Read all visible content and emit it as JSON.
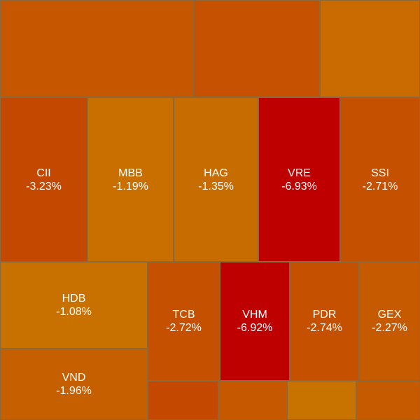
{
  "chart_data": {
    "type": "treemap",
    "tiles": [
      {
        "ticker": "",
        "change": "",
        "change_value": null,
        "color": "#c75600"
      },
      {
        "ticker": "",
        "change": "",
        "change_value": null,
        "color": "#c65100"
      },
      {
        "ticker": "",
        "change": "",
        "change_value": null,
        "color": "#c96b00"
      },
      {
        "ticker": "CII",
        "change": "-3.23%",
        "change_value": -3.23,
        "color": "#c44800"
      },
      {
        "ticker": "MBB",
        "change": "-1.19%",
        "change_value": -1.19,
        "color": "#c86f00"
      },
      {
        "ticker": "HAG",
        "change": "-1.35%",
        "change_value": -1.35,
        "color": "#c76c00"
      },
      {
        "ticker": "VRE",
        "change": "-6.93%",
        "change_value": -6.93,
        "color": "#bf0000"
      },
      {
        "ticker": "SSI",
        "change": "-2.71%",
        "change_value": -2.71,
        "color": "#c55000"
      },
      {
        "ticker": "HDB",
        "change": "-1.08%",
        "change_value": -1.08,
        "color": "#c87000"
      },
      {
        "ticker": "TCB",
        "change": "-2.72%",
        "change_value": -2.72,
        "color": "#c55000"
      },
      {
        "ticker": "VHM",
        "change": "-6.92%",
        "change_value": -6.92,
        "color": "#bf0000"
      },
      {
        "ticker": "PDR",
        "change": "-2.74%",
        "change_value": -2.74,
        "color": "#c55000"
      },
      {
        "ticker": "GEX",
        "change": "-2.27%",
        "change_value": -2.27,
        "color": "#c65a00"
      },
      {
        "ticker": "VND",
        "change": "-1.96%",
        "change_value": -1.96,
        "color": "#c65f00"
      },
      {
        "ticker": "",
        "change": "",
        "change_value": null,
        "color": "#c44800"
      },
      {
        "ticker": "",
        "change": "",
        "change_value": null,
        "color": "#c65800"
      },
      {
        "ticker": "",
        "change": "",
        "change_value": null,
        "color": "#c87200"
      },
      {
        "ticker": "",
        "change": "",
        "change_value": null,
        "color": "#c65a00"
      }
    ]
  }
}
